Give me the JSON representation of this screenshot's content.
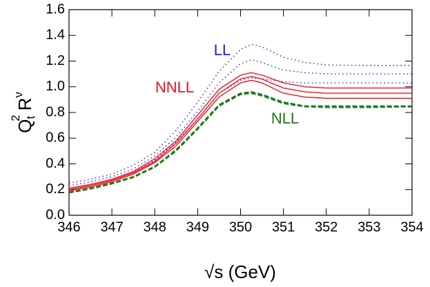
{
  "chart_data": {
    "type": "line",
    "x_label": "√s (GeV)",
    "y_label_parts": [
      "Q",
      "t",
      "2",
      "R",
      "ν"
    ],
    "x": [
      346,
      346.5,
      347,
      347.5,
      348,
      348.5,
      349,
      349.5,
      350,
      350.25,
      350.5,
      351,
      351.5,
      352,
      353,
      354
    ],
    "xlim": [
      346,
      354
    ],
    "xticks": [
      346,
      347,
      348,
      349,
      350,
      351,
      352,
      353,
      354
    ],
    "ylim": [
      0,
      1.6
    ],
    "yticks": [
      {
        "value": 0,
        "label": "0.0"
      },
      0.2,
      0.4,
      0.6,
      0.8,
      {
        "value": 1,
        "label": "1.0"
      },
      1.2,
      1.4,
      1.6
    ],
    "series": [
      {
        "name": "LL",
        "color": "#1a1aff",
        "style": "dotted",
        "curves": [
          [
            0.25,
            0.28,
            0.32,
            0.39,
            0.49,
            0.66,
            0.88,
            1.12,
            1.29,
            1.33,
            1.31,
            1.23,
            1.19,
            1.17,
            1.165,
            1.165
          ],
          [
            0.23,
            0.26,
            0.3,
            0.36,
            0.46,
            0.61,
            0.81,
            1.03,
            1.18,
            1.21,
            1.19,
            1.13,
            1.11,
            1.1,
            1.1,
            1.1
          ],
          [
            0.21,
            0.24,
            0.28,
            0.34,
            0.43,
            0.57,
            0.75,
            0.95,
            1.05,
            1.07,
            1.06,
            1.04,
            1.03,
            1.03,
            1.03,
            1.03
          ]
        ]
      },
      {
        "name": "NNLL",
        "color": "#e8141e",
        "style": "solid",
        "curves": [
          [
            0.21,
            0.24,
            0.28,
            0.34,
            0.44,
            0.58,
            0.78,
            0.98,
            1.09,
            1.11,
            1.09,
            1.03,
            1.0,
            0.99,
            0.99,
            0.99
          ],
          [
            0.2,
            0.23,
            0.27,
            0.33,
            0.42,
            0.56,
            0.75,
            0.95,
            1.06,
            1.08,
            1.06,
            0.99,
            0.96,
            0.95,
            0.95,
            0.95
          ],
          [
            0.19,
            0.22,
            0.26,
            0.32,
            0.41,
            0.54,
            0.73,
            0.92,
            1.03,
            1.05,
            1.03,
            0.95,
            0.92,
            0.91,
            0.91,
            0.91
          ]
        ]
      },
      {
        "name": "NLL",
        "color": "#1a7a1a",
        "style": "dashed",
        "curves": [
          [
            0.18,
            0.21,
            0.25,
            0.3,
            0.38,
            0.51,
            0.68,
            0.86,
            0.95,
            0.96,
            0.94,
            0.88,
            0.85,
            0.85,
            0.85,
            0.85
          ],
          [
            0.175,
            0.205,
            0.245,
            0.295,
            0.375,
            0.5,
            0.67,
            0.85,
            0.94,
            0.95,
            0.93,
            0.87,
            0.845,
            0.84,
            0.84,
            0.845
          ]
        ]
      }
    ]
  }
}
